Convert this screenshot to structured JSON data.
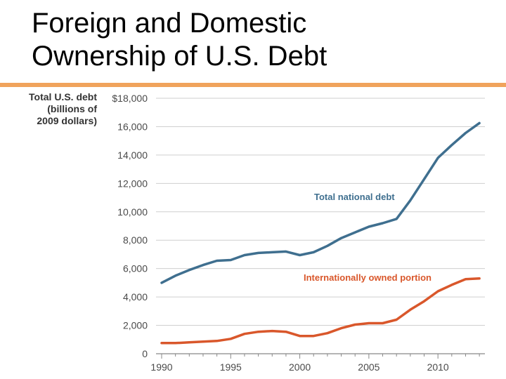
{
  "slide": {
    "title_line1": "Foreign and Domestic",
    "title_line2": "Ownership of U.S. Debt"
  },
  "colors": {
    "divider": "#f0a35c",
    "total_line": "#3f6f8f",
    "foreign_line": "#d9572b",
    "grid": "#cfcfcf",
    "tick_text": "#4a4a4a"
  },
  "chart_data": {
    "type": "line",
    "ylabel_lines": [
      "Total U.S. debt",
      "(billions of",
      "2009 dollars)"
    ],
    "xlim": [
      1990,
      2013.4
    ],
    "ylim": [
      0,
      18000
    ],
    "x_ticks": [
      1990,
      1995,
      2000,
      2005,
      2010
    ],
    "y_ticks": [
      0,
      2000,
      4000,
      6000,
      8000,
      10000,
      12000,
      14000,
      16000,
      18000
    ],
    "y_tick_labels": [
      "0",
      "2,000",
      "4,000",
      "6,000",
      "8,000",
      "10,000",
      "12,000",
      "14,000",
      "16,000",
      "$18,000"
    ],
    "grid": "horizontal",
    "series": [
      {
        "name": "Total national debt",
        "color": "#3f6f8f",
        "x": [
          1990,
          1991,
          1992,
          1993,
          1994,
          1995,
          1996,
          1997,
          1998,
          1999,
          2000,
          2001,
          2002,
          2003,
          2004,
          2005,
          2006,
          2007,
          2008,
          2009,
          2010,
          2011,
          2012,
          2013
        ],
        "y": [
          5000,
          5500,
          5900,
          6250,
          6550,
          6600,
          6950,
          7100,
          7150,
          7200,
          6950,
          7150,
          7600,
          8150,
          8550,
          8950,
          9200,
          9500,
          10800,
          12300,
          13800,
          14700,
          15550,
          16250
        ]
      },
      {
        "name": "Internationally owned portion",
        "color": "#d9572b",
        "x": [
          1990,
          1991,
          1992,
          1993,
          1994,
          1995,
          1996,
          1997,
          1998,
          1999,
          2000,
          2001,
          2002,
          2003,
          2004,
          2005,
          2006,
          2007,
          2008,
          2009,
          2010,
          2011,
          2012,
          2013
        ],
        "y": [
          750,
          750,
          800,
          850,
          900,
          1050,
          1400,
          1550,
          1600,
          1550,
          1250,
          1250,
          1450,
          1800,
          2050,
          2150,
          2150,
          2400,
          3100,
          3700,
          4400,
          4850,
          5250,
          5300
        ]
      }
    ]
  }
}
